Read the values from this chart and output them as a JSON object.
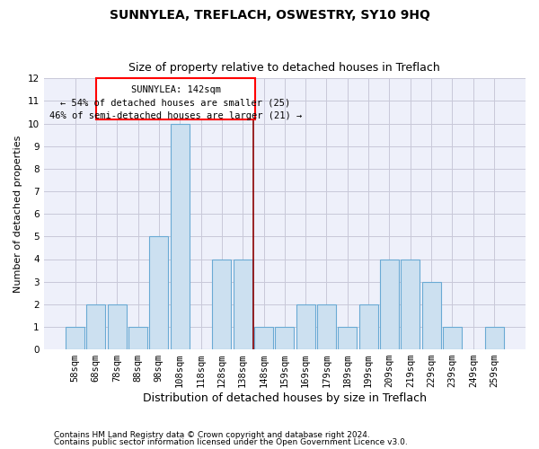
{
  "title": "SUNNYLEA, TREFLACH, OSWESTRY, SY10 9HQ",
  "subtitle": "Size of property relative to detached houses in Treflach",
  "xlabel": "Distribution of detached houses by size in Treflach",
  "ylabel": "Number of detached properties",
  "categories": [
    "58sqm",
    "68sqm",
    "78sqm",
    "88sqm",
    "98sqm",
    "108sqm",
    "118sqm",
    "128sqm",
    "138sqm",
    "148sqm",
    "159sqm",
    "169sqm",
    "179sqm",
    "189sqm",
    "199sqm",
    "209sqm",
    "219sqm",
    "229sqm",
    "239sqm",
    "249sqm",
    "259sqm"
  ],
  "values": [
    1,
    2,
    2,
    1,
    5,
    10,
    0,
    4,
    4,
    1,
    1,
    2,
    2,
    1,
    2,
    4,
    4,
    3,
    1,
    0,
    1
  ],
  "bar_color": "#cce0f0",
  "bar_edge_color": "#6aaad4",
  "grid_color": "#c8c8d8",
  "background_color": "#eef0fa",
  "ylim": [
    0,
    12
  ],
  "yticks": [
    0,
    1,
    2,
    3,
    4,
    5,
    6,
    7,
    8,
    9,
    10,
    11,
    12
  ],
  "annotation_text_line1": "SUNNYLEA: 142sqm",
  "annotation_text_line2": "← 54% of detached houses are smaller (25)",
  "annotation_text_line3": "46% of semi-detached houses are larger (21) →",
  "footer_line1": "Contains HM Land Registry data © Crown copyright and database right 2024.",
  "footer_line2": "Contains public sector information licensed under the Open Government Licence v3.0.",
  "title_fontsize": 10,
  "subtitle_fontsize": 9,
  "xlabel_fontsize": 9,
  "ylabel_fontsize": 8,
  "tick_fontsize": 7.5,
  "footer_fontsize": 6.5,
  "ann_fontsize": 7.5
}
